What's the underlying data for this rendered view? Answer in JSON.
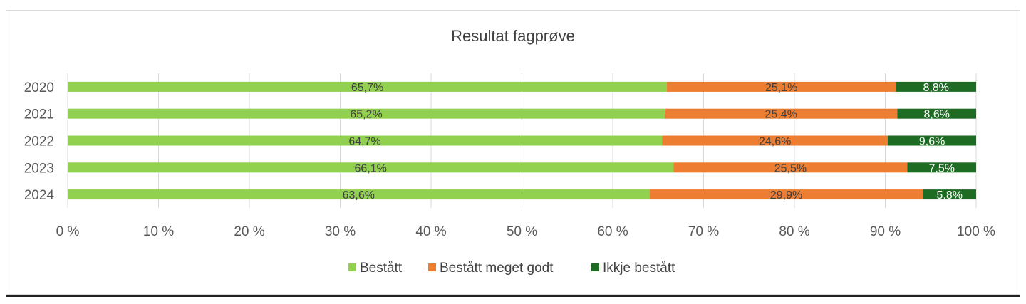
{
  "chart_data": {
    "type": "bar",
    "orientation": "horizontal",
    "stacked": "percent",
    "title": "Resultat fagprøve",
    "categories": [
      "2020",
      "2021",
      "2022",
      "2023",
      "2024"
    ],
    "series": [
      {
        "name": "Bestått",
        "color": "#92d050",
        "values": [
          65.7,
          65.2,
          64.7,
          66.1,
          63.6
        ],
        "labels": [
          "65,7%",
          "65,2%",
          "64,7%",
          "66,1%",
          "63,6%"
        ]
      },
      {
        "name": "Bestått meget godt",
        "color": "#ed7d31",
        "values": [
          25.1,
          25.4,
          24.6,
          25.5,
          29.9
        ],
        "labels": [
          "25,1%",
          "25,4%",
          "24,6%",
          "25,5%",
          "29,9%"
        ]
      },
      {
        "name": "Ikkje bestått",
        "color": "#1e6b24",
        "values": [
          8.8,
          8.6,
          9.6,
          7.5,
          5.8
        ],
        "labels": [
          "8,8%",
          "8,6%",
          "9,6%",
          "7,5%",
          "5,8%"
        ]
      }
    ],
    "xlim": [
      0,
      100
    ],
    "xticks": [
      "0 %",
      "10 %",
      "20 %",
      "30 %",
      "40 %",
      "50 %",
      "60 %",
      "70 %",
      "80 %",
      "90 %",
      "100 %"
    ],
    "grid": true,
    "legend": "bottom"
  }
}
